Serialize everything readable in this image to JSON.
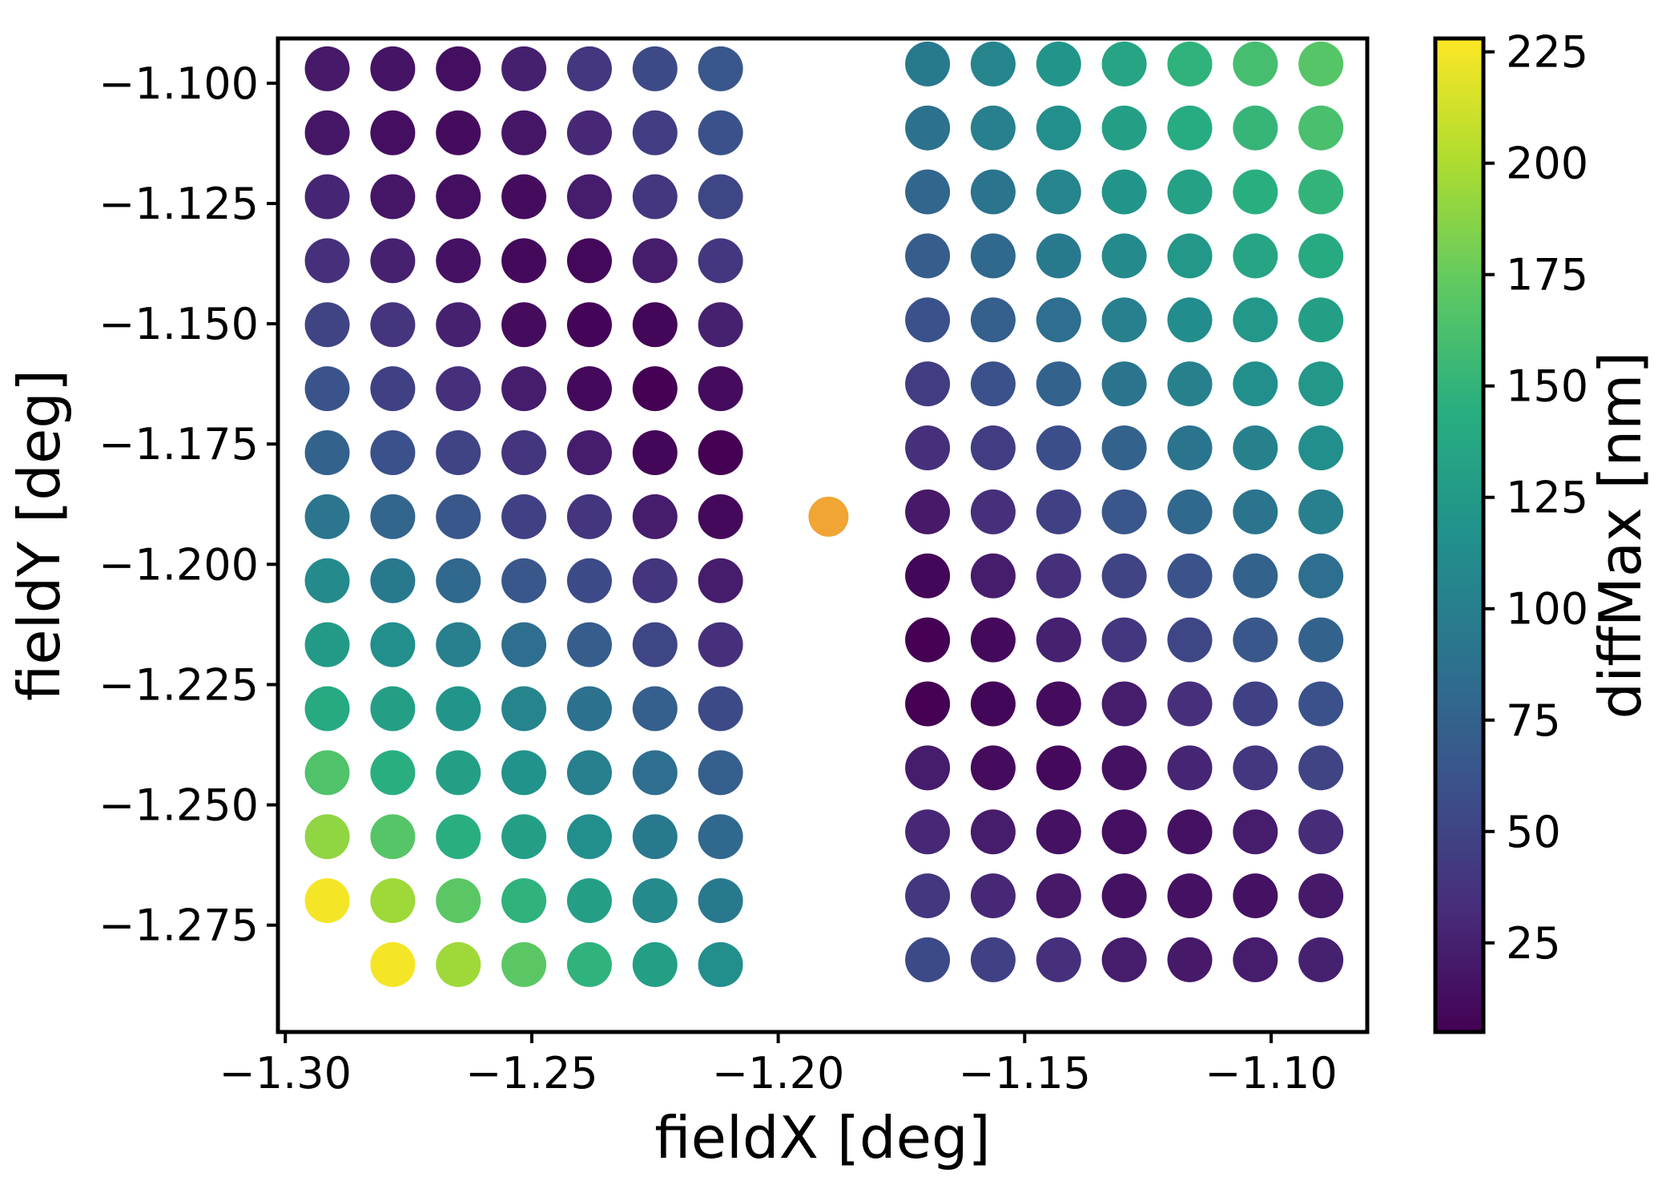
{
  "chart_data": {
    "type": "scatter",
    "xlabel": "fieldX [deg]",
    "ylabel": "fieldY [deg]",
    "xlim": [
      -1.3015,
      -1.0805
    ],
    "ylim": [
      -1.2972,
      -1.0907
    ],
    "x_ticks": [
      {
        "value": -1.3,
        "label": "−1.30"
      },
      {
        "value": -1.25,
        "label": "−1.25"
      },
      {
        "value": -1.2,
        "label": "−1.20"
      },
      {
        "value": -1.15,
        "label": "−1.15"
      },
      {
        "value": -1.1,
        "label": "−1.10"
      }
    ],
    "y_ticks": [
      {
        "value": -1.1,
        "label": "−1.100"
      },
      {
        "value": -1.125,
        "label": "−1.125"
      },
      {
        "value": -1.15,
        "label": "−1.150"
      },
      {
        "value": -1.175,
        "label": "−1.175"
      },
      {
        "value": -1.2,
        "label": "−1.200"
      },
      {
        "value": -1.225,
        "label": "−1.225"
      },
      {
        "value": -1.25,
        "label": "−1.250"
      },
      {
        "value": -1.275,
        "label": "−1.275"
      }
    ],
    "colorbar": {
      "label": "diffMax [nm]",
      "colormap": "viridis",
      "range": [
        5,
        228
      ],
      "ticks": [
        {
          "value": 25,
          "label": "25"
        },
        {
          "value": 50,
          "label": "50"
        },
        {
          "value": 75,
          "label": "75"
        },
        {
          "value": 100,
          "label": "100"
        },
        {
          "value": 125,
          "label": "125"
        },
        {
          "value": 150,
          "label": "150"
        },
        {
          "value": 175,
          "label": "175"
        },
        {
          "value": 200,
          "label": "200"
        },
        {
          "value": 225,
          "label": "225"
        }
      ]
    },
    "grid": false,
    "series": [
      {
        "x": [
          -1.2915,
          -1.2782,
          -1.2649,
          -1.2516,
          -1.2383,
          -1.225,
          -1.2117
        ],
        "y": [
          -1.097,
          -1.1103,
          -1.1236,
          -1.1369,
          -1.1502,
          -1.1635,
          -1.1768,
          -1.1901,
          -1.2034,
          -1.2167,
          -1.23,
          -1.2433,
          -1.2566,
          -1.2699,
          -1.2832
        ],
        "values": [
          [
            20,
            17,
            14,
            24,
            40,
            55,
            65
          ],
          [
            18,
            14,
            12,
            18,
            30,
            45,
            60
          ],
          [
            28,
            18,
            14,
            12,
            22,
            40,
            52
          ],
          [
            35,
            25,
            15,
            10,
            9,
            22,
            40
          ],
          [
            50,
            38,
            25,
            12,
            7,
            8,
            25
          ],
          [
            62,
            48,
            35,
            22,
            10,
            5,
            12
          ],
          [
            75,
            60,
            50,
            38,
            22,
            8,
            3
          ],
          [
            92,
            78,
            65,
            48,
            38,
            22,
            10
          ],
          [
            110,
            95,
            80,
            65,
            55,
            38,
            22
          ],
          [
            125,
            115,
            100,
            85,
            70,
            52,
            35
          ],
          [
            140,
            130,
            120,
            105,
            88,
            72,
            55
          ],
          [
            165,
            145,
            130,
            118,
            100,
            85,
            72
          ],
          [
            190,
            168,
            145,
            130,
            115,
            95,
            80
          ],
          [
            225,
            195,
            170,
            148,
            130,
            110,
            95
          ],
          [
            null,
            225,
            195,
            170,
            148,
            130,
            115
          ]
        ]
      },
      {
        "x": [
          -1.1697,
          -1.1564,
          -1.1431,
          -1.1298,
          -1.1165,
          -1.1032,
          -1.0899
        ],
        "y": [
          -1.096,
          -1.1093,
          -1.1226,
          -1.1359,
          -1.1492,
          -1.1625,
          -1.1758,
          -1.1891,
          -1.2024,
          -1.2157,
          -1.229,
          -1.2423,
          -1.2556,
          -1.2689,
          -1.2822
        ],
        "values": [
          [
            95,
            105,
            120,
            135,
            148,
            160,
            168
          ],
          [
            88,
            100,
            115,
            130,
            142,
            152,
            162
          ],
          [
            78,
            90,
            105,
            120,
            132,
            145,
            150
          ],
          [
            70,
            80,
            95,
            110,
            122,
            135,
            140
          ],
          [
            60,
            72,
            85,
            100,
            112,
            122,
            130
          ],
          [
            45,
            60,
            75,
            90,
            102,
            115,
            122
          ],
          [
            35,
            45,
            58,
            75,
            90,
            102,
            115
          ],
          [
            20,
            35,
            48,
            65,
            80,
            90,
            100
          ],
          [
            8,
            22,
            35,
            50,
            62,
            75,
            85
          ],
          [
            3,
            10,
            25,
            40,
            52,
            65,
            75
          ],
          [
            5,
            8,
            12,
            22,
            35,
            48,
            60
          ],
          [
            22,
            12,
            10,
            15,
            28,
            40,
            50
          ],
          [
            30,
            22,
            15,
            14,
            16,
            22,
            32
          ],
          [
            40,
            30,
            20,
            16,
            15,
            16,
            20
          ],
          [
            55,
            48,
            35,
            22,
            20,
            22,
            25
          ]
        ]
      },
      {
        "x": [
          -1.1898
        ],
        "y": [
          -1.1901
        ],
        "point_color": "#f0a534"
      }
    ]
  }
}
